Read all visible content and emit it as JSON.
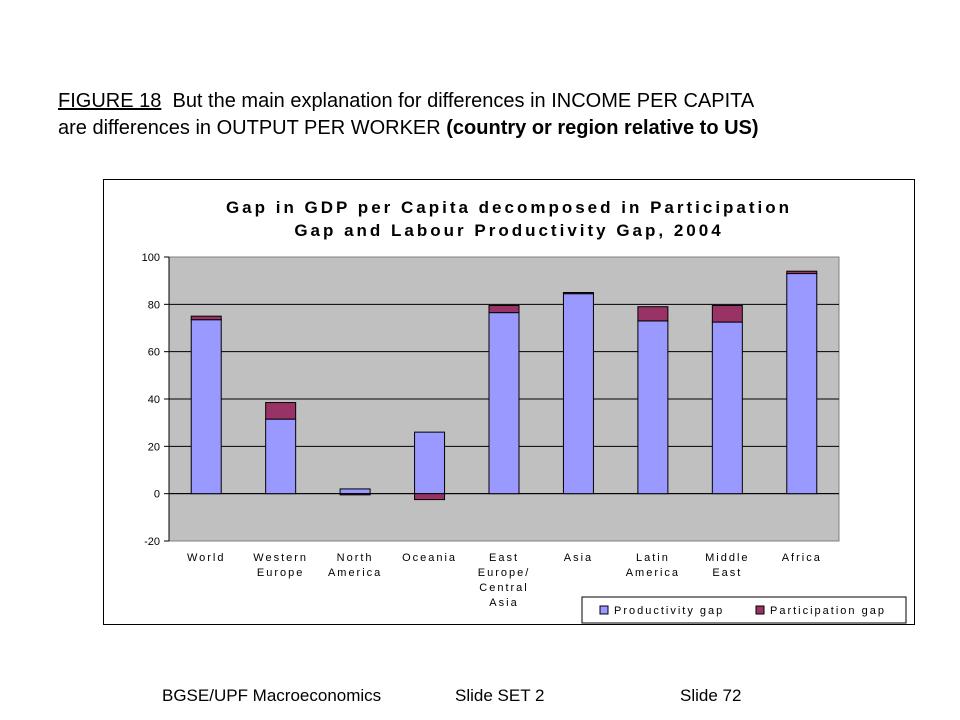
{
  "heading": {
    "figure_label": "FIGURE 18",
    "line1_rest": "  But the main explanation for differences in INCOME PER CAPITA",
    "line2_plain": "are differences in OUTPUT PER WORKER ",
    "line2_bold": "(country or region relative to US)"
  },
  "footer": {
    "course": "BGSE/UPF Macroeconomics",
    "set": "Slide SET 2",
    "slide": "Slide 72"
  },
  "colors": {
    "productivity": "#9999FF",
    "participation": "#993366",
    "plot_bg": "#C0C0C0"
  },
  "chart_data": {
    "type": "bar",
    "stacked": true,
    "title_lines": [
      "Gap in GDP per Capita decomposed in Participation",
      "Gap and Labour Productivity Gap, 2004"
    ],
    "category_lines": [
      [
        "World"
      ],
      [
        "Western",
        "Europe"
      ],
      [
        "North",
        "America"
      ],
      [
        "Oceania"
      ],
      [
        "East",
        "Europe/",
        "Central",
        "Asia"
      ],
      [
        "Asia"
      ],
      [
        "Latin",
        "America"
      ],
      [
        "Middle",
        "East"
      ],
      [
        "Africa"
      ]
    ],
    "series": [
      {
        "name": "Productivity gap",
        "values": [
          73.5,
          31.5,
          2.0,
          26.0,
          76.5,
          84.5,
          73.0,
          72.5,
          93.0
        ]
      },
      {
        "name": "Participation gap",
        "values": [
          1.5,
          7.0,
          -0.5,
          -2.5,
          3.0,
          0.5,
          6.0,
          7.0,
          1.0
        ]
      }
    ],
    "ylim": [
      -20,
      100
    ],
    "yticks": [
      -20,
      0,
      20,
      40,
      60,
      80,
      100
    ],
    "grid": "horizontal",
    "legend": "bottom-right"
  }
}
